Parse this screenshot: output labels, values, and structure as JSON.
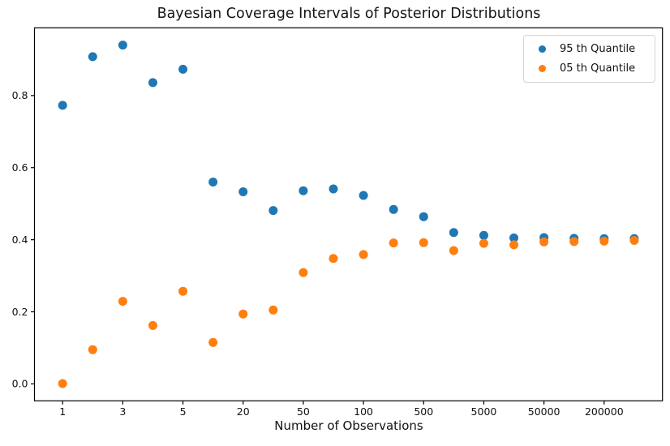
{
  "chart_data": {
    "type": "scatter",
    "title": "Bayesian Coverage Intervals of Posterior Distributions",
    "xlabel": "Number of Observations",
    "ylabel": "",
    "grid": false,
    "legend_position": "upper right",
    "x_axis": {
      "scale": "categorical",
      "num_positions": 20,
      "tick_positions": [
        1,
        3,
        5,
        7,
        9,
        11,
        13,
        15,
        17,
        19
      ],
      "tick_labels": [
        "1",
        "3",
        "5",
        "20",
        "50",
        "100",
        "500",
        "5000",
        "50000",
        "200000"
      ]
    },
    "y_axis": {
      "ticks": [
        0.0,
        0.2,
        0.4,
        0.6,
        0.8
      ],
      "tick_labels": [
        "0.0",
        "0.2",
        "0.4",
        "0.6",
        "0.8"
      ],
      "ylim": [
        -0.047,
        0.988
      ]
    },
    "series": [
      {
        "name": "95 th Quantile",
        "color": "#1f77b4",
        "values": [
          0.773,
          0.908,
          0.94,
          0.836,
          0.873,
          0.56,
          0.533,
          0.481,
          0.536,
          0.541,
          0.523,
          0.484,
          0.464,
          0.42,
          0.412,
          0.405,
          0.406,
          0.404,
          0.403,
          0.403
        ]
      },
      {
        "name": "05 th Quantile",
        "color": "#ff7f0e",
        "values": [
          0.001,
          0.095,
          0.229,
          0.162,
          0.257,
          0.115,
          0.194,
          0.205,
          0.309,
          0.348,
          0.359,
          0.391,
          0.392,
          0.37,
          0.39,
          0.386,
          0.394,
          0.395,
          0.396,
          0.398
        ]
      }
    ]
  }
}
